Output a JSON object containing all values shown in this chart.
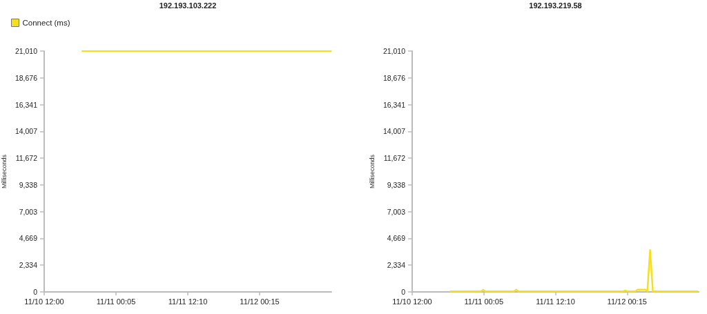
{
  "chart_data": [
    {
      "type": "line",
      "title": "192.193.103.222",
      "ylabel": "Milliseconds",
      "legend": "top left",
      "x": [
        "--11-10T18:25",
        "--11-11T06:00",
        "--11-11T18:00",
        "--11-12T06:00",
        "--11-12T12:15"
      ],
      "series": [
        {
          "name": "Connect (ms)",
          "color": "#f6df1c",
          "values": [
            21010,
            21010,
            21010,
            21010,
            21010
          ]
        }
      ],
      "xlim": [
        "--11-10T12:00",
        "--11-12T12:20"
      ],
      "xticks": [
        {
          "value": "--11-10T12:00",
          "label": "11/10 12:00"
        },
        {
          "value": "--11-11T00:05",
          "label": "11/11 00:05"
        },
        {
          "value": "--11-11T12:10",
          "label": "11/11 12:10"
        },
        {
          "value": "--11-12T00:15",
          "label": "11/12 00:15"
        }
      ],
      "ylim": [
        0,
        21010
      ],
      "yticks": [
        0,
        {
          "value": 2334,
          "label": "2,334"
        },
        {
          "value": 4669,
          "label": "4,669"
        },
        {
          "value": 7003,
          "label": "7,003"
        },
        {
          "value": 9338,
          "label": "9,338"
        },
        {
          "value": 11672,
          "label": "11,672"
        },
        {
          "value": 14007,
          "label": "14,007"
        },
        {
          "value": 16341,
          "label": "16,341"
        },
        {
          "value": 18676,
          "label": "18,676"
        },
        {
          "value": 21010,
          "label": "21,010"
        }
      ]
    },
    {
      "type": "line",
      "title": "192.193.219.58",
      "ylabel": "Milliseconds",
      "x": [
        "--11-10T18:25",
        "--11-10T23:35",
        "--11-10T23:58",
        "--11-11T00:20",
        "--11-11T05:10",
        "--11-11T05:33",
        "--11-11T05:55",
        "--11-11T23:35",
        "--11-11T23:56",
        "--11-12T00:20",
        "--11-12T01:40",
        "--11-12T02:00",
        "--11-12T03:20",
        "--11-12T03:40",
        "--11-12T04:08",
        "--11-12T04:36",
        "--11-12T12:10"
      ],
      "series": [
        {
          "color": "#f6df1c",
          "values": [
            40,
            40,
            180,
            40,
            40,
            200,
            40,
            40,
            120,
            40,
            40,
            200,
            200,
            40,
            3650,
            40,
            40
          ]
        }
      ],
      "xlim": [
        "--11-10T12:00",
        "--11-12T12:20"
      ],
      "xticks": [
        {
          "value": "--11-10T12:00",
          "label": "11/10 12:00"
        },
        {
          "value": "--11-11T00:05",
          "label": "11/11 00:05"
        },
        {
          "value": "--11-11T12:10",
          "label": "11/11 12:10"
        },
        {
          "value": "--11-12T00:15",
          "label": "11/12 00:15"
        }
      ],
      "ylim": [
        0,
        21010
      ],
      "yticks": [
        0,
        {
          "value": 2334,
          "label": "2,334"
        },
        {
          "value": 4669,
          "label": "4,669"
        },
        {
          "value": 7003,
          "label": "7,003"
        },
        {
          "value": 9338,
          "label": "9,338"
        },
        {
          "value": 11672,
          "label": "11,672"
        },
        {
          "value": 14007,
          "label": "14,007"
        },
        {
          "value": 16341,
          "label": "16,341"
        },
        {
          "value": 18676,
          "label": "18,676"
        },
        {
          "value": 21010,
          "label": "21,010"
        }
      ]
    }
  ]
}
